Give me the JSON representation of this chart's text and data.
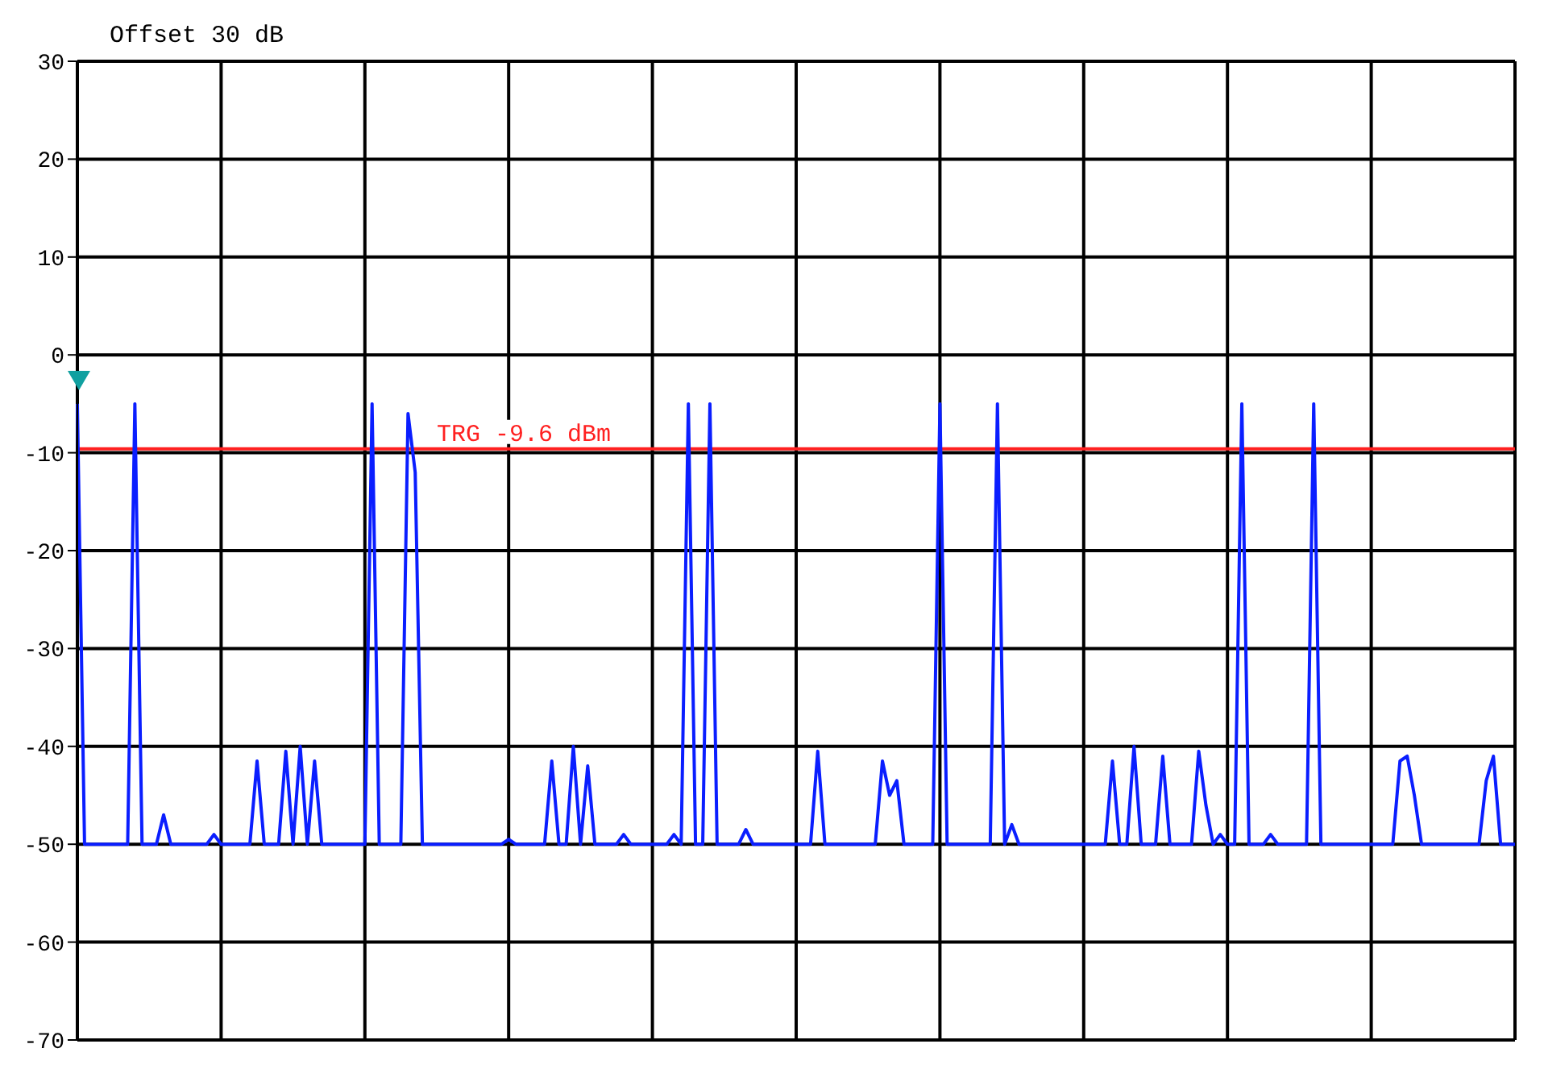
{
  "chart_data": {
    "type": "line",
    "annotations": [
      "Offset 30 dB"
    ],
    "categories": [
      null,
      null,
      null,
      null,
      null,
      null,
      null,
      null,
      null,
      null,
      null,
      null,
      null,
      null,
      null,
      null,
      null,
      null,
      null,
      null,
      null,
      null,
      null,
      null,
      null,
      null,
      null,
      null,
      null,
      null,
      null,
      null,
      null,
      null,
      null,
      null,
      null,
      null,
      null,
      null,
      null,
      null,
      null,
      null,
      null,
      null,
      null,
      null,
      null,
      null,
      null,
      null,
      null,
      null,
      null,
      null,
      null,
      null,
      null,
      null,
      null,
      null,
      null,
      null,
      null,
      null,
      null,
      null,
      null,
      null,
      null,
      null,
      null,
      null,
      null,
      null,
      null,
      null,
      null,
      null,
      null,
      null,
      null,
      null,
      null,
      null,
      null,
      null,
      null,
      null,
      null,
      null,
      null,
      null,
      null,
      null,
      null,
      null,
      null,
      null,
      null,
      null,
      null,
      null,
      null,
      null,
      null,
      null,
      null,
      null,
      null,
      null,
      null,
      null,
      null,
      null,
      null,
      null,
      null,
      null,
      null,
      null,
      null,
      null,
      null,
      null,
      null,
      null,
      null,
      null,
      null,
      null,
      null,
      null,
      null,
      null,
      null,
      null,
      null,
      null,
      null,
      null,
      null,
      null,
      null,
      null,
      null,
      null,
      null,
      null,
      null,
      null,
      null,
      null,
      null,
      null,
      null,
      null,
      null,
      null,
      null,
      null,
      null,
      null,
      null,
      null,
      null,
      null,
      null,
      null,
      null,
      null,
      null,
      null,
      null,
      null,
      null,
      null,
      null,
      null,
      null,
      null,
      null,
      null,
      null,
      null,
      null,
      null,
      null,
      null,
      null,
      null,
      null,
      null,
      null,
      null,
      null,
      null,
      null,
      null,
      null
    ],
    "series": [
      {
        "color": "#0a1eff",
        "values": [
          -5,
          -50,
          -50,
          -50,
          -50,
          -50,
          -50,
          -50,
          -5,
          -50,
          -50,
          -50,
          -47,
          -50,
          -50,
          -50,
          -50,
          -50,
          -50,
          -49,
          -50,
          -50,
          -50,
          -50,
          -50,
          -41.5,
          -50,
          -50,
          -50,
          -40.5,
          -50,
          -40,
          -50,
          -41.5,
          -50,
          -50,
          -50,
          -50,
          -50,
          -50,
          -50,
          -5,
          -50,
          -50,
          -50,
          -50,
          -6,
          -12,
          -50,
          -50,
          -50,
          -50,
          -50,
          -50,
          -50,
          -50,
          -50,
          -50,
          -50,
          -50,
          -49.5,
          -50,
          -50,
          -50,
          -50,
          -50,
          -41.5,
          -50,
          -50,
          -40,
          -50,
          -42,
          -50,
          -50,
          -50,
          -50,
          -49,
          -50,
          -50,
          -50,
          -50,
          -50,
          -50,
          -49,
          -50,
          -5,
          -50,
          -50,
          -5,
          -50,
          -50,
          -50,
          -50,
          -48.5,
          -50,
          -50,
          -50,
          -50,
          -50,
          -50,
          -50,
          -50,
          -50,
          -40.5,
          -50,
          -50,
          -50,
          -50,
          -50,
          -50,
          -50,
          -50,
          -41.5,
          -45,
          -43.5,
          -50,
          -50,
          -50,
          -50,
          -50,
          -5,
          -50,
          -50,
          -50,
          -50,
          -50,
          -50,
          -50,
          -5,
          -50,
          -48,
          -50,
          -50,
          -50,
          -50,
          -50,
          -50,
          -50,
          -50,
          -50,
          -50,
          -50,
          -50,
          -50,
          -41.5,
          -50,
          -50,
          -40,
          -50,
          -50,
          -50,
          -41,
          -50,
          -50,
          -50,
          -50,
          -40.5,
          -46,
          -50,
          -49,
          -50,
          -50,
          -5,
          -50,
          -50,
          -50,
          -49,
          -50,
          -50,
          -50,
          -50,
          -50,
          -5,
          -50,
          -50,
          -50,
          -50,
          -50,
          -50,
          -50,
          -50,
          -50,
          -50,
          -50,
          -41.5,
          -41,
          -45,
          -50,
          -50,
          -50,
          -50,
          -50,
          -50,
          -50,
          -50,
          -50,
          -43.5,
          -41,
          -50,
          -50,
          -50
        ]
      }
    ],
    "ylim": [
      -70,
      30
    ],
    "yticks": [
      30,
      20,
      10,
      0,
      -10,
      -20,
      -30,
      -40,
      -50,
      -60,
      -70
    ],
    "ref_lines": [
      {
        "axis": "y",
        "value": -9.6,
        "label": "TRG -9.6 dBm",
        "color": "#ff2020"
      }
    ],
    "grid": true,
    "tick_labels": "y"
  }
}
